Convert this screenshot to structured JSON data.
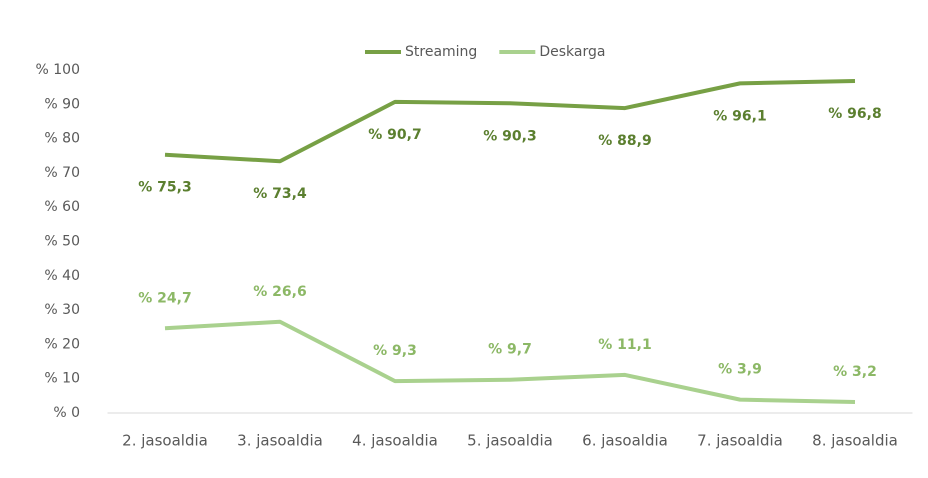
{
  "chart_data": {
    "type": "line",
    "categories": [
      "2. jasoaldia",
      "3. jasoaldia",
      "4. jasoaldia",
      "5. jasoaldia",
      "6. jasoaldia",
      "7. jasoaldia",
      "8. jasoaldia"
    ],
    "series": [
      {
        "name": "Streaming",
        "color": "#77a045",
        "label_color": "#5b7f2f",
        "values": [
          75.3,
          73.4,
          90.7,
          90.3,
          88.9,
          96.1,
          96.8
        ],
        "value_labels": [
          "% 75,3",
          "% 73,4",
          "% 90,7",
          "% 90,3",
          "% 88,9",
          "% 96,1",
          "% 96,8"
        ]
      },
      {
        "name": "Deskarga",
        "color": "#a9d18e",
        "label_color": "#8cb866",
        "values": [
          24.7,
          26.6,
          9.3,
          9.7,
          11.1,
          3.9,
          3.2
        ],
        "value_labels": [
          "% 24,7",
          "% 26,6",
          "% 9,3",
          "% 9,7",
          "% 11,1",
          "% 3,9",
          "% 3,2"
        ]
      }
    ],
    "ylim": [
      0,
      100
    ],
    "yticks": [
      {
        "value": 0,
        "label": "% 0"
      },
      {
        "value": 10,
        "label": "% 10"
      },
      {
        "value": 20,
        "label": "% 20"
      },
      {
        "value": 30,
        "label": "% 30"
      },
      {
        "value": 40,
        "label": "% 40"
      },
      {
        "value": 50,
        "label": "% 50"
      },
      {
        "value": 60,
        "label": "% 60"
      },
      {
        "value": 70,
        "label": "% 70"
      },
      {
        "value": 80,
        "label": "% 80"
      },
      {
        "value": 90,
        "label": "% 90"
      },
      {
        "value": 100,
        "label": "% 100"
      }
    ],
    "grid": false,
    "legend": "top"
  }
}
